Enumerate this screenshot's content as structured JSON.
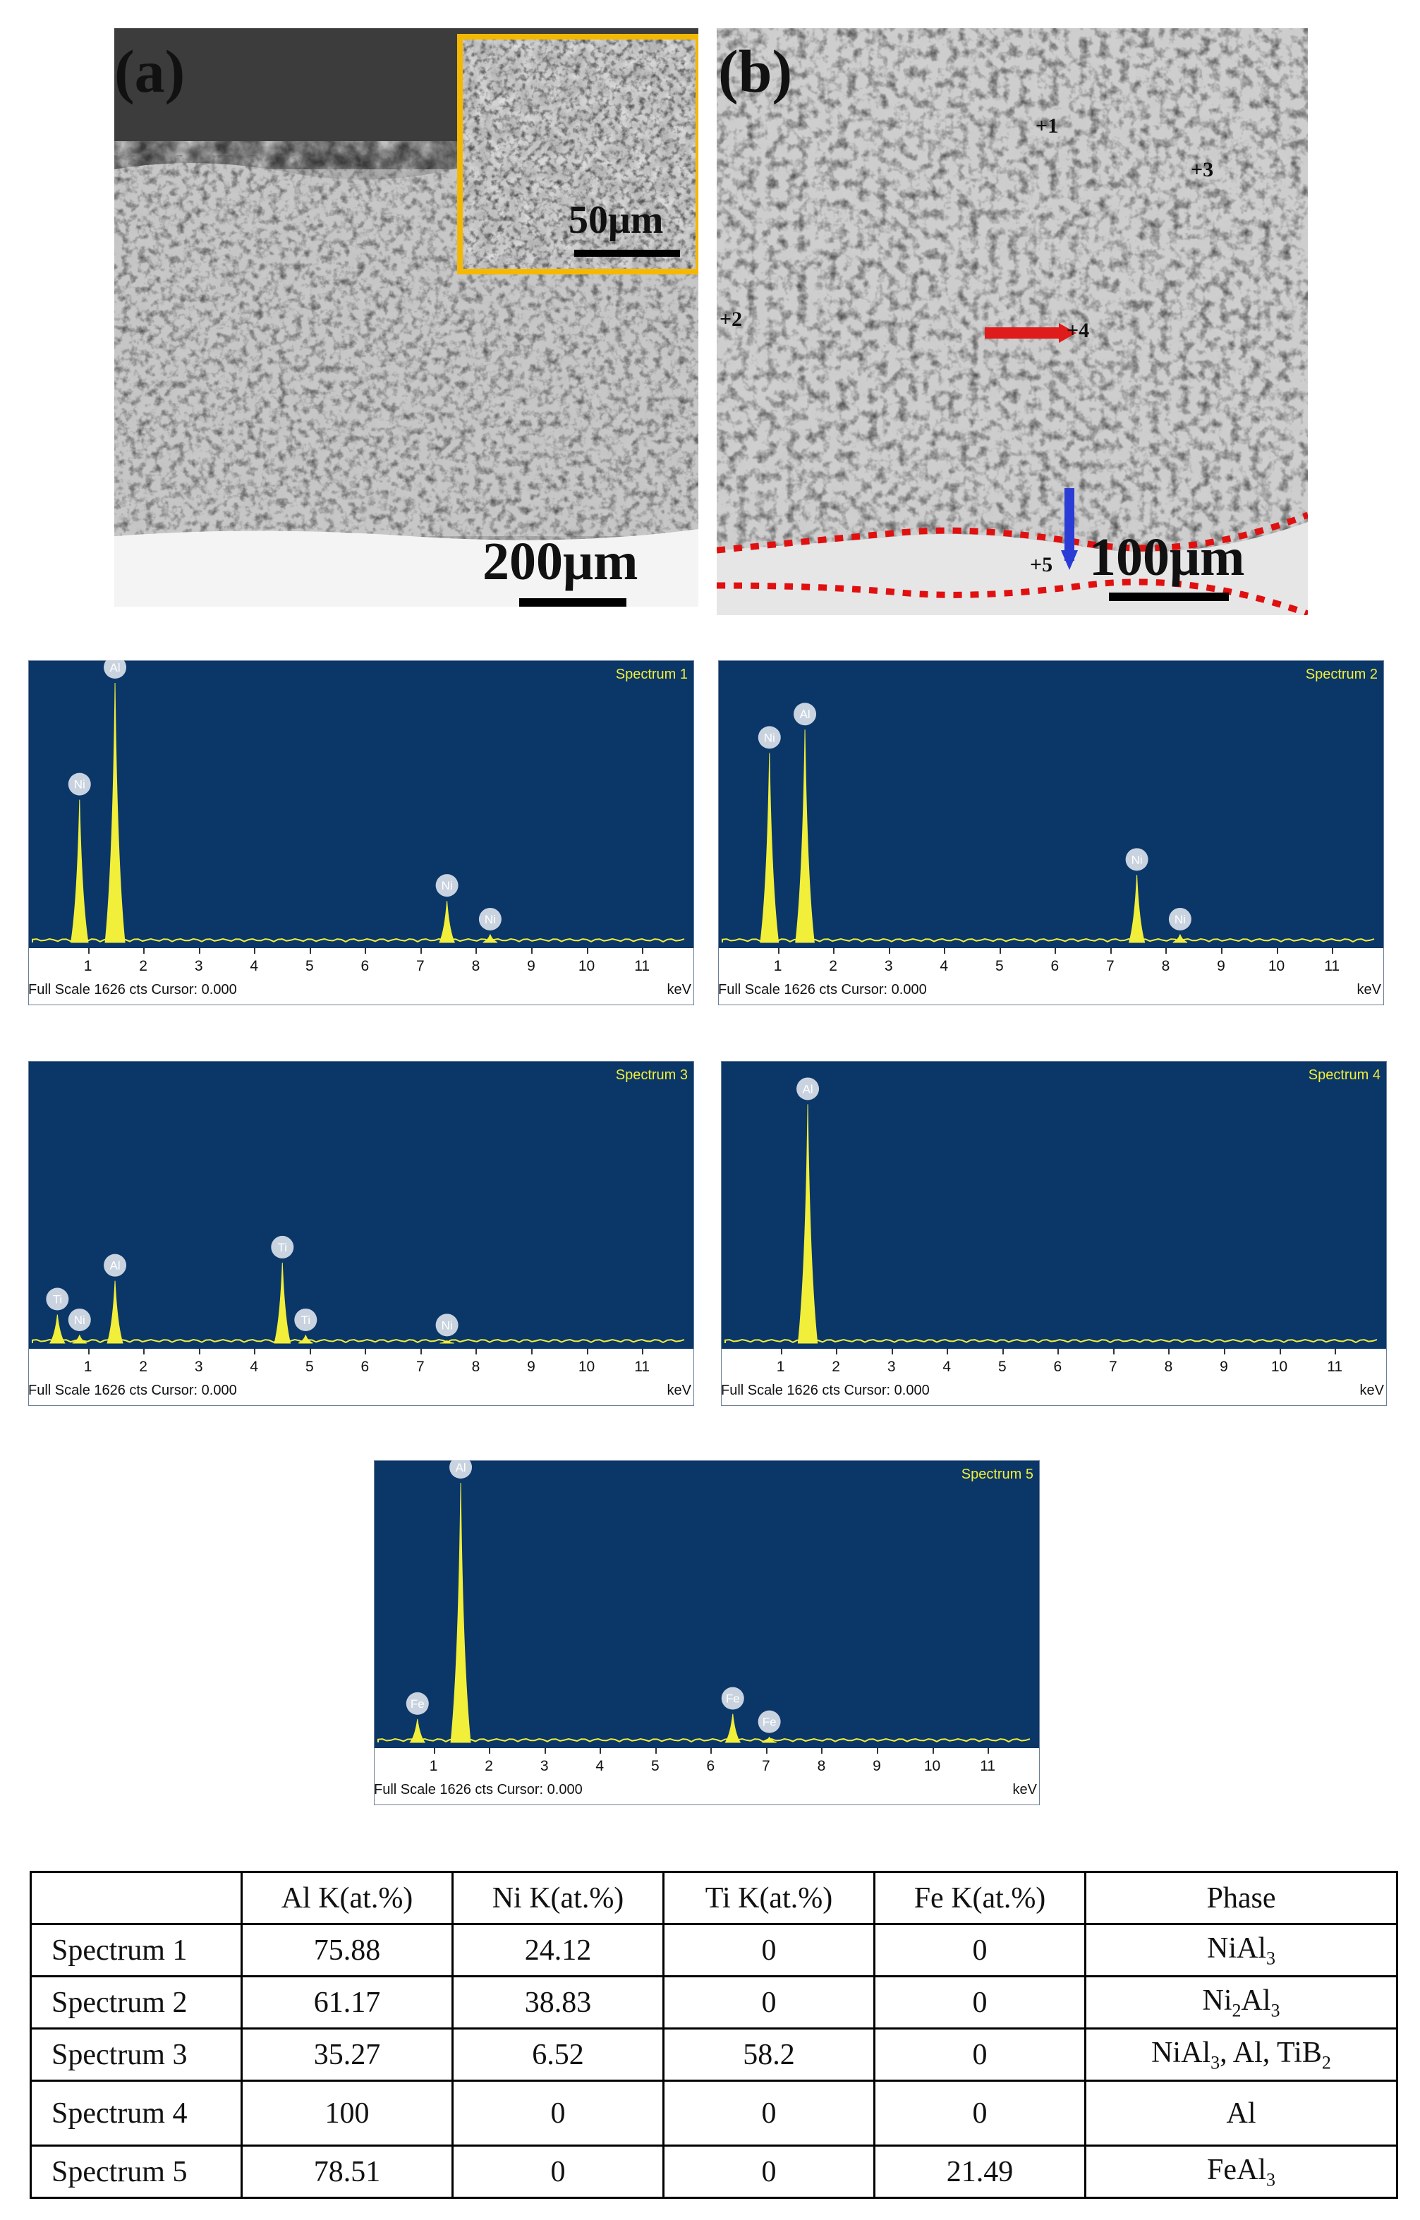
{
  "figure": {
    "panel_a": {
      "label": "(a)",
      "inset_scale": "50μm",
      "scale": "200μm",
      "inset_border_color": "#f5b800"
    },
    "panel_b": {
      "label": "(b)",
      "scale": "100μm",
      "points": [
        "+1",
        "+2",
        "+3",
        "+4",
        "+5"
      ],
      "arrow_red": "#e01b1b",
      "arrow_blue": "#2a3bd6",
      "interface_color": "#e01010"
    }
  },
  "spectra": [
    {
      "title": "Spectrum 1",
      "footer": "Full Scale 1626 cts Cursor: 0.000",
      "unit": "keV",
      "x_ticks": [
        "1",
        "2",
        "3",
        "4",
        "5",
        "6",
        "7",
        "8",
        "9",
        "10",
        "11"
      ],
      "peaks": [
        {
          "element": "Ni",
          "kev": 0.85,
          "counts": 0.55
        },
        {
          "element": "Al",
          "kev": 1.49,
          "counts": 1.0
        },
        {
          "element": "Ni",
          "kev": 7.48,
          "counts": 0.16
        },
        {
          "element": "Ni",
          "kev": 8.26,
          "counts": 0.03
        }
      ]
    },
    {
      "title": "Spectrum 2",
      "footer": "Full Scale 1626 cts Cursor: 0.000",
      "unit": "keV",
      "x_ticks": [
        "1",
        "2",
        "3",
        "4",
        "5",
        "6",
        "7",
        "8",
        "9",
        "10",
        "11"
      ],
      "peaks": [
        {
          "element": "Ni",
          "kev": 0.85,
          "counts": 0.73
        },
        {
          "element": "Al",
          "kev": 1.49,
          "counts": 0.82
        },
        {
          "element": "Ni",
          "kev": 7.48,
          "counts": 0.26
        },
        {
          "element": "Ni",
          "kev": 8.26,
          "counts": 0.03
        }
      ]
    },
    {
      "title": "Spectrum 3",
      "footer": "Full Scale 1626 cts Cursor: 0.000",
      "unit": "keV",
      "x_ticks": [
        "1",
        "2",
        "3",
        "4",
        "5",
        "6",
        "7",
        "8",
        "9",
        "10",
        "11"
      ],
      "peaks": [
        {
          "element": "Ti",
          "kev": 0.45,
          "counts": 0.11
        },
        {
          "element": "Ni",
          "kev": 0.85,
          "counts": 0.03
        },
        {
          "element": "Al",
          "kev": 1.49,
          "counts": 0.24
        },
        {
          "element": "Ti",
          "kev": 4.51,
          "counts": 0.31
        },
        {
          "element": "Ti",
          "kev": 4.93,
          "counts": 0.03
        },
        {
          "element": "Ni",
          "kev": 7.48,
          "counts": 0.01
        }
      ]
    },
    {
      "title": "Spectrum 4",
      "footer": "Full Scale 1626 cts Cursor: 0.000",
      "unit": "keV",
      "x_ticks": [
        "1",
        "2",
        "3",
        "4",
        "5",
        "6",
        "7",
        "8",
        "9",
        "10",
        "11"
      ],
      "peaks": [
        {
          "element": "Al",
          "kev": 1.49,
          "counts": 0.92
        }
      ]
    },
    {
      "title": "Spectrum 5",
      "footer": "Full Scale 1626 cts Cursor: 0.000",
      "unit": "keV",
      "x_ticks": [
        "1",
        "2",
        "3",
        "4",
        "5",
        "6",
        "7",
        "8",
        "9",
        "10",
        "11"
      ],
      "peaks": [
        {
          "element": "Fe",
          "kev": 0.71,
          "counts": 0.09
        },
        {
          "element": "Al",
          "kev": 1.49,
          "counts": 1.0
        },
        {
          "element": "Fe",
          "kev": 6.4,
          "counts": 0.11
        },
        {
          "element": "Fe",
          "kev": 7.06,
          "counts": 0.02
        }
      ]
    }
  ],
  "table": {
    "headers": [
      "",
      "Al K(at.%)",
      "Ni K(at.%)",
      "Ti K(at.%)",
      "Fe K(at.%)",
      "Phase"
    ],
    "rows": [
      {
        "name": "Spectrum 1",
        "al": "75.88",
        "ni": "24.12",
        "ti": "0",
        "fe": "0",
        "phase": [
          "NiAl",
          "3",
          ""
        ]
      },
      {
        "name": "Spectrum 2",
        "al": "61.17",
        "ni": "38.83",
        "ti": "0",
        "fe": "0",
        "phase": [
          "Ni",
          "2",
          "Al",
          "3"
        ]
      },
      {
        "name": "Spectrum 3",
        "al": "35.27",
        "ni": "6.52",
        "ti": "58.2",
        "fe": "0",
        "phase": [
          "NiAl",
          "3",
          ", Al, TiB",
          "2"
        ]
      },
      {
        "name": "Spectrum 4",
        "al": "100",
        "ni": "0",
        "ti": "0",
        "fe": "0",
        "phase": [
          "Al"
        ]
      },
      {
        "name": "Spectrum 5",
        "al": "78.51",
        "ni": "0",
        "ti": "0",
        "fe": "21.49",
        "phase": [
          "FeAl",
          "3"
        ]
      }
    ]
  },
  "colors": {
    "spectrum_bg": "#0b3668",
    "peak_fill": "#f1ef3a",
    "label_circle": "#c9d3df"
  }
}
